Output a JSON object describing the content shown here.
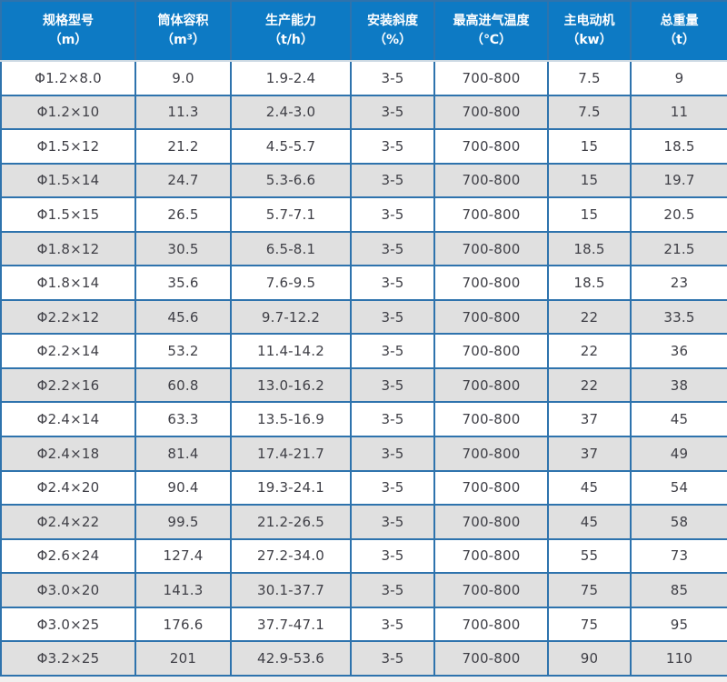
{
  "table": {
    "columns": [
      {
        "label": "规格型号",
        "unit": "（m）"
      },
      {
        "label": "筒体容积",
        "unit": "（m³）"
      },
      {
        "label": "生产能力",
        "unit": "（t/h）"
      },
      {
        "label": "安装斜度",
        "unit": "（%）"
      },
      {
        "label": "最高进气温度",
        "unit": "（℃）"
      },
      {
        "label": "主电动机",
        "unit": "（kw）"
      },
      {
        "label": "总重量",
        "unit": "（t）"
      }
    ],
    "rows": [
      [
        "Φ1.2×8.0",
        "9.0",
        "1.9-2.4",
        "3-5",
        "700-800",
        "7.5",
        "9"
      ],
      [
        "Φ1.2×10",
        "11.3",
        "2.4-3.0",
        "3-5",
        "700-800",
        "7.5",
        "11"
      ],
      [
        "Φ1.5×12",
        "21.2",
        "4.5-5.7",
        "3-5",
        "700-800",
        "15",
        "18.5"
      ],
      [
        "Φ1.5×14",
        "24.7",
        "5.3-6.6",
        "3-5",
        "700-800",
        "15",
        "19.7"
      ],
      [
        "Φ1.5×15",
        "26.5",
        "5.7-7.1",
        "3-5",
        "700-800",
        "15",
        "20.5"
      ],
      [
        "Φ1.8×12",
        "30.5",
        "6.5-8.1",
        "3-5",
        "700-800",
        "18.5",
        "21.5"
      ],
      [
        "Φ1.8×14",
        "35.6",
        "7.6-9.5",
        "3-5",
        "700-800",
        "18.5",
        "23"
      ],
      [
        "Φ2.2×12",
        "45.6",
        "9.7-12.2",
        "3-5",
        "700-800",
        "22",
        "33.5"
      ],
      [
        "Φ2.2×14",
        "53.2",
        "11.4-14.2",
        "3-5",
        "700-800",
        "22",
        "36"
      ],
      [
        "Φ2.2×16",
        "60.8",
        "13.0-16.2",
        "3-5",
        "700-800",
        "22",
        "38"
      ],
      [
        "Φ2.4×14",
        "63.3",
        "13.5-16.9",
        "3-5",
        "700-800",
        "37",
        "45"
      ],
      [
        "Φ2.4×18",
        "81.4",
        "17.4-21.7",
        "3-5",
        "700-800",
        "37",
        "49"
      ],
      [
        "Φ2.4×20",
        "90.4",
        "19.3-24.1",
        "3-5",
        "700-800",
        "45",
        "54"
      ],
      [
        "Φ2.4×22",
        "99.5",
        "21.2-26.5",
        "3-5",
        "700-800",
        "45",
        "58"
      ],
      [
        "Φ2.6×24",
        "127.4",
        "27.2-34.0",
        "3-5",
        "700-800",
        "55",
        "73"
      ],
      [
        "Φ3.0×20",
        "141.3",
        "30.1-37.7",
        "3-5",
        "700-800",
        "75",
        "85"
      ],
      [
        "Φ3.0×25",
        "176.6",
        "37.7-47.1",
        "3-5",
        "700-800",
        "75",
        "95"
      ],
      [
        "Φ3.2×25",
        "201",
        "42.9-53.6",
        "3-5",
        "700-800",
        "90",
        "110"
      ]
    ]
  },
  "colors": {
    "header_bg": "#0d7ac4",
    "header_text": "#ffffff",
    "border": "#2e73ad",
    "header_bottom_separator": "#ccd9e3",
    "row_bg": "#ffffff",
    "row_alt_bg": "#e0e0e0",
    "cell_text": "#3f3f46",
    "page_bg": "#f1f0ef"
  }
}
